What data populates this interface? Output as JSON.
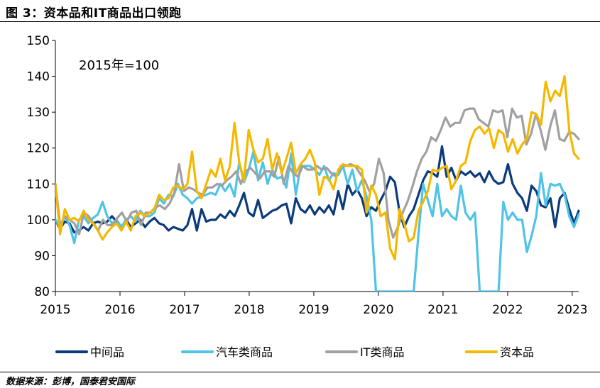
{
  "figure": {
    "title": "图 3：资本品和IT商品出口领跑",
    "source": "数据来源：彭博，国泰君安国际"
  },
  "chart_data": {
    "type": "line",
    "title": "资本品和IT商品出口领跑",
    "annotation": "2015年=100",
    "xlabel": "",
    "ylabel": "",
    "ylim": [
      80,
      150
    ],
    "yticks": [
      80,
      90,
      100,
      110,
      120,
      130,
      140,
      150
    ],
    "xlim": [
      2015,
      2023.1
    ],
    "xticks": [
      2015,
      2016,
      2017,
      2018,
      2019,
      2020,
      2021,
      2022,
      2023
    ],
    "xtick_labels": [
      "2015",
      "2016",
      "2017",
      "2018",
      "2019",
      "2020",
      "2021",
      "2022",
      "2023"
    ],
    "legend_position": "bottom",
    "series": [
      {
        "name": "中间品",
        "color": "#0b3b7a",
        "width": 3.2,
        "values": [
          100.0,
          97.5,
          99.5,
          99.0,
          96.5,
          97.0,
          98.0,
          97.0,
          99.0,
          99.5,
          99.0,
          99.5,
          101.0,
          99.5,
          98.0,
          100.0,
          98.0,
          99.0,
          100.0,
          98.0,
          99.5,
          100.5,
          99.0,
          98.5,
          97.0,
          98.0,
          97.5,
          97.0,
          98.5,
          103.0,
          97.0,
          103.0,
          99.5,
          100.0,
          100.0,
          101.5,
          100.5,
          102.5,
          101.0,
          104.0,
          107.5,
          102.0,
          101.0,
          105.5,
          100.5,
          101.5,
          102.5,
          103.0,
          104.0,
          104.5,
          99.0,
          106.0,
          103.0,
          102.0,
          104.0,
          101.5,
          103.5,
          102.0,
          104.0,
          101.5,
          108.0,
          103.0,
          110.0,
          107.0,
          108.5,
          106.0,
          101.0,
          103.5,
          102.5,
          105.5,
          108.0,
          112.0,
          110.5,
          102.0,
          98.0,
          101.0,
          103.0,
          107.0,
          111.0,
          113.5,
          113.0,
          112.0,
          120.5,
          112.0,
          114.5,
          111.0,
          113.5,
          112.5,
          113.5,
          112.0,
          113.0,
          110.5,
          113.5,
          111.0,
          110.0,
          110.5,
          115.5,
          110.0,
          107.5,
          106.0,
          102.5,
          109.5,
          108.0,
          104.0,
          103.5,
          106.0,
          98.0,
          106.0,
          107.5,
          103.0,
          99.0,
          102.5
        ]
      },
      {
        "name": "汽车类商品",
        "color": "#4fc3e8",
        "width": 3.2,
        "values": [
          100.0,
          98.0,
          101.0,
          98.5,
          93.5,
          100.0,
          101.0,
          99.0,
          100.5,
          101.5,
          105.0,
          101.0,
          99.0,
          100.0,
          98.0,
          100.0,
          101.0,
          99.5,
          102.5,
          101.0,
          101.0,
          102.0,
          106.0,
          104.5,
          107.0,
          106.5,
          110.0,
          107.0,
          106.0,
          104.5,
          106.0,
          106.5,
          107.0,
          107.5,
          107.0,
          110.0,
          108.0,
          110.0,
          106.5,
          116.0,
          110.5,
          114.0,
          119.0,
          111.0,
          116.0,
          110.0,
          114.0,
          111.5,
          112.0,
          109.0,
          118.5,
          107.0,
          115.0,
          115.0,
          115.0,
          114.0,
          112.5,
          115.0,
          111.0,
          113.0,
          112.5,
          115.0,
          110.0,
          114.0,
          108.0,
          111.0,
          106.5,
          100.0,
          80.0,
          80.0,
          80.0,
          80.0,
          80.0,
          80.0,
          80.0,
          80.0,
          80.0,
          96.0,
          110.0,
          105.5,
          101.0,
          110.0,
          101.0,
          103.0,
          101.0,
          100.0,
          109.5,
          102.0,
          100.0,
          102.0,
          80.0,
          80.0,
          80.0,
          80.0,
          80.0,
          105.0,
          100.0,
          102.0,
          100.0,
          100.0,
          91.0,
          95.5,
          101.0,
          113.0,
          104.0,
          110.0,
          109.5,
          110.0,
          107.0,
          101.0,
          98.0,
          101.5
        ]
      },
      {
        "name": "IT类商品",
        "color": "#a0a0a0",
        "width": 3.2,
        "values": [
          110.0,
          98.5,
          101.0,
          100.0,
          99.0,
          96.0,
          102.0,
          101.0,
          99.0,
          97.0,
          100.0,
          98.5,
          98.5,
          100.5,
          102.0,
          99.5,
          102.0,
          102.5,
          98.5,
          102.0,
          102.0,
          103.5,
          104.0,
          103.0,
          104.5,
          107.5,
          115.5,
          108.0,
          109.0,
          108.5,
          107.5,
          107.0,
          109.0,
          109.0,
          110.0,
          109.5,
          111.0,
          112.0,
          113.5,
          110.0,
          113.5,
          114.5,
          113.0,
          111.5,
          113.5,
          113.5,
          112.0,
          117.5,
          110.0,
          115.0,
          113.0,
          112.0,
          115.0,
          114.0,
          114.0,
          115.0,
          114.0,
          114.5,
          113.0,
          112.0,
          115.0,
          115.0,
          115.5,
          115.0,
          113.0,
          111.0,
          108.0,
          110.0,
          117.0,
          113.0,
          100.0,
          95.0,
          98.0,
          102.0,
          105.0,
          109.0,
          113.5,
          117.0,
          119.0,
          123.0,
          122.0,
          125.0,
          128.5,
          126.0,
          127.0,
          127.0,
          130.5,
          131.0,
          131.0,
          128.0,
          127.0,
          126.0,
          130.5,
          130.0,
          130.5,
          123.0,
          131.0,
          128.5,
          129.0,
          121.0,
          124.0,
          129.5,
          125.0,
          119.5,
          126.0,
          130.5,
          122.5,
          122.0,
          124.5,
          124.0,
          122.5
        ]
      },
      {
        "name": "资本品",
        "color": "#f5b800",
        "width": 3.2,
        "values": [
          110.0,
          96.0,
          103.0,
          100.0,
          100.5,
          99.5,
          102.5,
          100.0,
          99.0,
          97.0,
          94.5,
          96.5,
          98.0,
          99.0,
          97.0,
          99.5,
          97.0,
          101.0,
          102.0,
          101.0,
          102.0,
          103.0,
          107.0,
          105.5,
          106.0,
          109.0,
          109.5,
          108.5,
          110.0,
          119.0,
          108.0,
          106.0,
          110.0,
          114.0,
          112.0,
          117.0,
          111.0,
          115.0,
          127.0,
          116.0,
          111.0,
          125.0,
          119.5,
          116.0,
          117.0,
          122.5,
          114.0,
          118.5,
          113.0,
          117.0,
          121.5,
          113.0,
          115.5,
          117.0,
          119.5,
          116.0,
          107.0,
          112.0,
          111.5,
          108.5,
          114.0,
          115.5,
          115.0,
          115.0,
          115.0,
          114.0,
          102.0,
          109.5,
          107.0,
          101.0,
          102.0,
          92.0,
          89.0,
          103.0,
          99.0,
          94.0,
          95.0,
          102.5,
          105.0,
          108.0,
          114.0,
          113.5,
          114.5,
          115.0,
          108.5,
          111.0,
          115.0,
          116.0,
          122.0,
          125.0,
          126.0,
          124.0,
          125.5,
          120.0,
          125.0,
          124.0,
          119.0,
          122.5,
          118.5,
          121.0,
          122.5,
          130.0,
          129.5,
          126.5,
          138.5,
          133.0,
          136.0,
          134.5,
          140.0,
          125.0,
          118.5,
          117.0
        ]
      }
    ]
  }
}
